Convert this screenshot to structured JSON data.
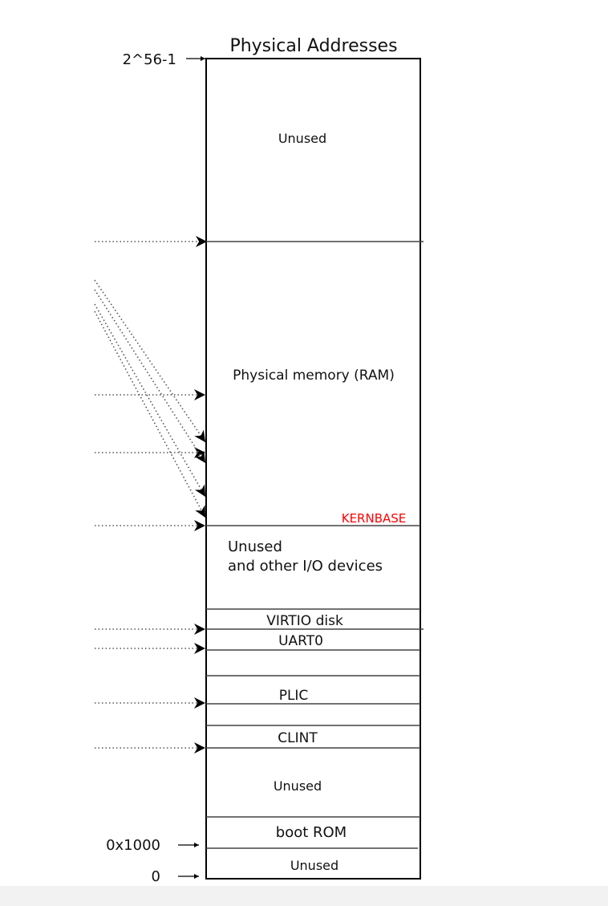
{
  "title": "Physical Addresses",
  "address_labels": {
    "top": "2^56-1",
    "boot": "0x1000",
    "zero": "0"
  },
  "regions": {
    "unused_top": "Unused",
    "ram": "Physical memory (RAM)",
    "kernbase": "KERNBASE",
    "io_line1": "Unused",
    "io_line2": "and other I/O devices",
    "virtio": "VIRTIO disk",
    "uart": "UART0",
    "plic": "PLIC",
    "clint": "CLINT",
    "unused_low": "Unused",
    "boot_rom": "boot ROM",
    "unused_bottom": "Unused"
  },
  "colors": {
    "line": "#000000",
    "divider": "#555555",
    "kernbase": "#ff0000",
    "dotted": "#555555"
  }
}
